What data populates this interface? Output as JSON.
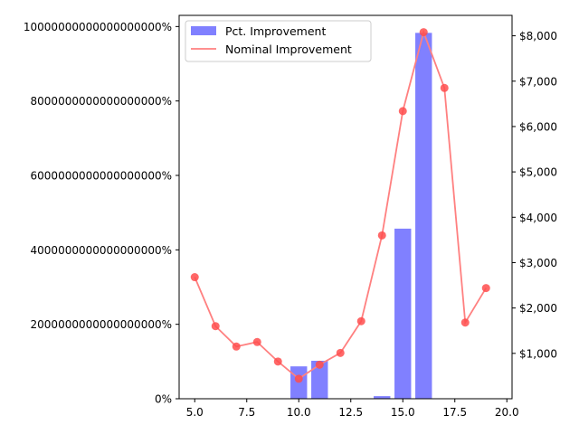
{
  "chart_data": {
    "type": "bar+line",
    "title": "",
    "xlabel": "",
    "ylabel_left": "",
    "ylabel_right": "",
    "xlim": [
      4.25,
      20.25
    ],
    "ylim_left": [
      0,
      10300000000000000000
    ],
    "ylim_right": [
      0,
      8450
    ],
    "x_ticks": [
      5.0,
      7.5,
      10.0,
      12.5,
      15.0,
      17.5,
      20.0
    ],
    "x_tick_labels": [
      "5.0",
      "7.5",
      "10.0",
      "12.5",
      "15.0",
      "17.5",
      "20.0"
    ],
    "y_left_ticks": [
      0,
      2000000000000000000,
      4000000000000000000,
      6000000000000000000,
      8000000000000000000,
      10000000000000000000
    ],
    "y_left_tick_labels": [
      "0%",
      "2000000000000000000%",
      "4000000000000000000%",
      "6000000000000000000%",
      "8000000000000000000%",
      "10000000000000000000%"
    ],
    "y_right_ticks": [
      1000,
      2000,
      3000,
      4000,
      5000,
      6000,
      7000,
      8000
    ],
    "y_right_tick_labels": [
      "$1,000",
      "$2,000",
      "$3,000",
      "$4,000",
      "$5,000",
      "$6,000",
      "$7,000",
      "$8,000"
    ],
    "grid": false,
    "legend_position": "top-left",
    "series": [
      {
        "name": "Pct. Improvement",
        "type": "bar",
        "axis": "left",
        "color": "#8080ff",
        "x": [
          5,
          6,
          7,
          8,
          9,
          10,
          11,
          12,
          13,
          14,
          15,
          16,
          17,
          18,
          19
        ],
        "values": [
          0,
          0,
          0,
          0,
          0,
          870000000000000000,
          1020000000000000000,
          0,
          0,
          70000000000000000,
          4570000000000000000,
          9830000000000000000,
          0,
          0,
          0
        ]
      },
      {
        "name": "Nominal Improvement",
        "type": "line",
        "axis": "right",
        "color": "#ff8080",
        "marker_color": "#ff4d4d",
        "x": [
          5,
          6,
          7,
          8,
          9,
          10,
          11,
          12,
          13,
          14,
          15,
          16,
          17,
          18,
          19
        ],
        "values": [
          2680,
          1600,
          1150,
          1250,
          820,
          440,
          750,
          1010,
          1710,
          3600,
          6340,
          8080,
          6850,
          1680,
          2440
        ]
      }
    ]
  }
}
